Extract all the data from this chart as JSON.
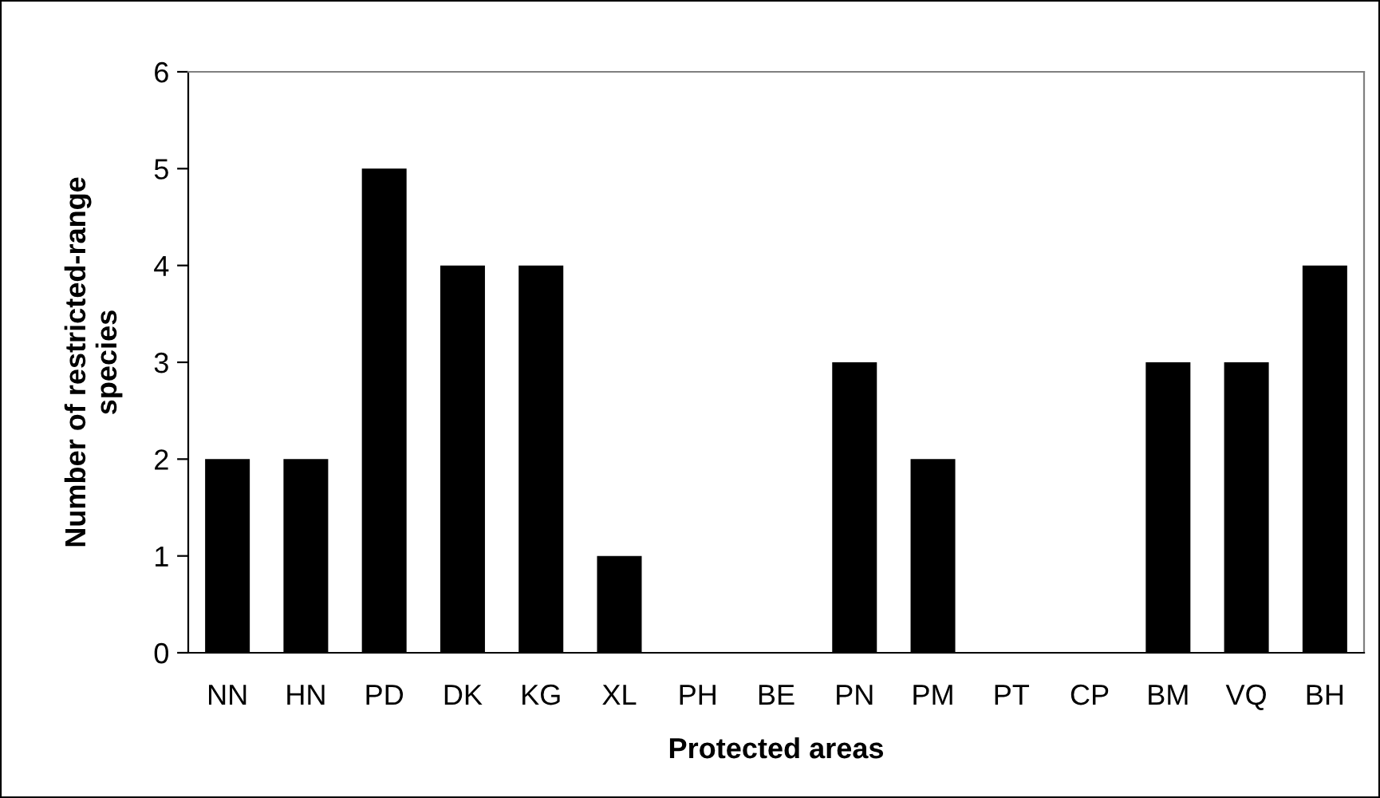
{
  "chart_data": {
    "type": "bar",
    "xlabel": "Protected areas",
    "ylabel": "Number of restricted-range\nspecies",
    "categories": [
      "NN",
      "HN",
      "PD",
      "DK",
      "KG",
      "XL",
      "PH",
      "BE",
      "PN",
      "PM",
      "PT",
      "CP",
      "BM",
      "VQ",
      "BH"
    ],
    "values": [
      2,
      2,
      5,
      4,
      4,
      1,
      0,
      0,
      3,
      2,
      0,
      0,
      3,
      3,
      4
    ],
    "color": "#000000",
    "ylim": [
      0,
      6
    ],
    "yticks": [
      0,
      1,
      2,
      3,
      4,
      5,
      6
    ],
    "grid": false,
    "legend": false
  }
}
